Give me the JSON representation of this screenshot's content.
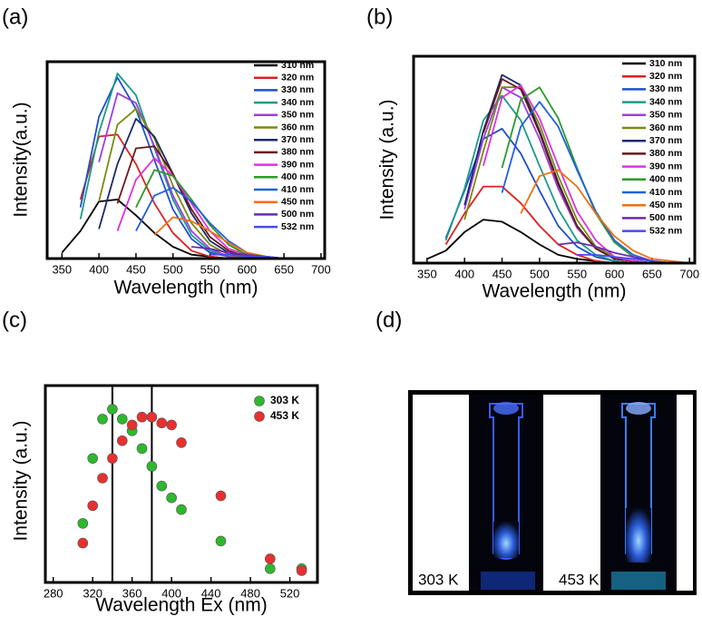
{
  "panel_labels": [
    "(a)",
    "(b)",
    "(c)",
    "(d)"
  ],
  "chart_data": [
    {
      "type": "line",
      "xlabel": "Wavelength (nm)",
      "ylabel": "Intensity(a.u.)",
      "xlim": [
        330,
        705
      ],
      "xticks": [
        350,
        400,
        450,
        500,
        550,
        600,
        650,
        700
      ],
      "ylim": [
        0,
        100
      ],
      "legend": "upper right",
      "x": [
        350,
        375,
        400,
        425,
        450,
        475,
        500,
        525,
        550,
        575,
        600,
        625,
        650,
        675,
        700
      ],
      "series": [
        {
          "name": "310 nm",
          "color": "#000000",
          "values": [
            3,
            14,
            29,
            30,
            22,
            13,
            6,
            2,
            1,
            0,
            0,
            0,
            0,
            0,
            0
          ]
        },
        {
          "name": "320 nm",
          "color": "#e02020",
          "values": [
            null,
            30,
            62,
            63,
            48,
            28,
            13,
            4,
            1,
            0,
            0,
            0,
            0,
            0,
            0
          ]
        },
        {
          "name": "330 nm",
          "color": "#1e50c8",
          "values": [
            null,
            26,
            72,
            92,
            76,
            50,
            25,
            10,
            3,
            1,
            0,
            0,
            0,
            0,
            0
          ]
        },
        {
          "name": "340 nm",
          "color": "#1a9a8a",
          "values": [
            null,
            20,
            64,
            94,
            83,
            56,
            30,
            12,
            4,
            1,
            0,
            0,
            0,
            0,
            0
          ]
        },
        {
          "name": "350 nm",
          "color": "#9b3fe0",
          "values": [
            null,
            null,
            49,
            84,
            79,
            57,
            32,
            14,
            5,
            1,
            0,
            0,
            0,
            0,
            0
          ]
        },
        {
          "name": "360 nm",
          "color": "#7a8a10",
          "values": [
            null,
            null,
            29,
            68,
            76,
            61,
            37,
            18,
            7,
            2,
            0,
            0,
            0,
            0,
            0
          ]
        },
        {
          "name": "370 nm",
          "color": "#1a2a6a",
          "values": [
            null,
            null,
            15,
            48,
            71,
            62,
            43,
            23,
            9,
            3,
            1,
            0,
            0,
            0,
            0
          ]
        },
        {
          "name": "380 nm",
          "color": "#6a1a1a",
          "values": [
            null,
            null,
            null,
            28,
            56,
            57,
            43,
            25,
            11,
            4,
            1,
            0,
            0,
            0,
            0
          ]
        },
        {
          "name": "390 nm",
          "color": "#e030e0",
          "values": [
            null,
            null,
            null,
            14,
            40,
            51,
            42,
            28,
            14,
            5,
            2,
            0,
            0,
            0,
            0
          ]
        },
        {
          "name": "400 nm",
          "color": "#2a9a2a",
          "values": [
            null,
            null,
            null,
            null,
            26,
            45,
            42,
            30,
            17,
            7,
            2,
            1,
            0,
            0,
            0
          ]
        },
        {
          "name": "410 nm",
          "color": "#2060e0",
          "values": [
            null,
            null,
            null,
            null,
            14,
            32,
            36,
            29,
            18,
            9,
            3,
            1,
            0,
            0,
            0
          ]
        },
        {
          "name": "450 nm",
          "color": "#f07010",
          "values": [
            null,
            null,
            null,
            null,
            null,
            12,
            21,
            19,
            14,
            8,
            3,
            1,
            0,
            0,
            0
          ]
        },
        {
          "name": "500 nm",
          "color": "#6a2ab0",
          "values": [
            null,
            null,
            null,
            null,
            null,
            null,
            null,
            6,
            5,
            3,
            2,
            1,
            0,
            0,
            0
          ]
        },
        {
          "name": "532 nm",
          "color": "#4a4af0",
          "values": [
            null,
            null,
            null,
            null,
            null,
            null,
            null,
            null,
            2,
            2,
            1,
            1,
            0,
            0,
            0
          ]
        }
      ]
    },
    {
      "type": "line",
      "xlabel": "Wavelength (nm)",
      "ylabel": "Intensity (a.u.)",
      "xlim": [
        332,
        707
      ],
      "xticks": [
        350,
        400,
        450,
        500,
        550,
        600,
        650,
        700
      ],
      "ylim": [
        0,
        100
      ],
      "legend": "upper right",
      "x": [
        350,
        375,
        400,
        425,
        450,
        475,
        500,
        525,
        550,
        575,
        600,
        625,
        650,
        675,
        700
      ],
      "series": [
        {
          "name": "310 nm",
          "color": "#000000",
          "values": [
            2,
            6,
            15,
            21,
            20,
            15,
            9,
            4,
            2,
            1,
            0,
            0,
            0,
            0,
            0
          ]
        },
        {
          "name": "320 nm",
          "color": "#e02020",
          "values": [
            null,
            9,
            24,
            37,
            37,
            29,
            18,
            9,
            4,
            1,
            0,
            0,
            0,
            0,
            0
          ]
        },
        {
          "name": "330 nm",
          "color": "#1e50c8",
          "values": [
            null,
            12,
            35,
            60,
            65,
            53,
            35,
            18,
            8,
            3,
            1,
            0,
            0,
            0,
            0
          ]
        },
        {
          "name": "340 nm",
          "color": "#1a9a8a",
          "values": [
            null,
            11,
            36,
            69,
            81,
            69,
            47,
            26,
            11,
            4,
            1,
            0,
            0,
            0,
            0
          ]
        },
        {
          "name": "350 nm",
          "color": "#9b3fe0",
          "values": [
            null,
            null,
            26,
            60,
            85,
            80,
            60,
            36,
            17,
            7,
            2,
            1,
            0,
            0,
            0
          ]
        },
        {
          "name": "360 nm",
          "color": "#7a8a10",
          "values": [
            null,
            null,
            21,
            54,
            85,
            85,
            67,
            42,
            21,
            8,
            3,
            1,
            0,
            0,
            0
          ]
        },
        {
          "name": "370 nm",
          "color": "#1a2a6a",
          "values": [
            null,
            null,
            28,
            64,
            91,
            86,
            64,
            39,
            18,
            7,
            2,
            1,
            0,
            0,
            0
          ]
        },
        {
          "name": "380 nm",
          "color": "#6a1a1a",
          "values": [
            null,
            null,
            null,
            63,
            89,
            84,
            63,
            38,
            18,
            7,
            2,
            1,
            0,
            0,
            0
          ]
        },
        {
          "name": "390 nm",
          "color": "#e030e0",
          "values": [
            null,
            null,
            null,
            47,
            80,
            86,
            70,
            47,
            25,
            11,
            3,
            1,
            0,
            0,
            0
          ]
        },
        {
          "name": "400 nm",
          "color": "#2a9a2a",
          "values": [
            null,
            null,
            null,
            null,
            46,
            79,
            85,
            70,
            46,
            24,
            10,
            3,
            1,
            0,
            0
          ]
        },
        {
          "name": "410 nm",
          "color": "#2060e0",
          "values": [
            null,
            null,
            null,
            null,
            34,
            66,
            78,
            66,
            45,
            25,
            11,
            4,
            1,
            0,
            0
          ]
        },
        {
          "name": "450 nm",
          "color": "#f07010",
          "values": [
            null,
            null,
            null,
            null,
            null,
            24,
            42,
            45,
            37,
            24,
            13,
            6,
            2,
            1,
            0
          ]
        },
        {
          "name": "500 nm",
          "color": "#6a2ab0",
          "values": [
            null,
            null,
            null,
            null,
            null,
            null,
            null,
            9,
            10,
            8,
            5,
            3,
            1,
            0,
            0
          ]
        },
        {
          "name": "532 nm",
          "color": "#4a4af0",
          "values": [
            null,
            null,
            null,
            null,
            null,
            null,
            null,
            null,
            4,
            4,
            3,
            2,
            1,
            0,
            0
          ]
        }
      ]
    },
    {
      "type": "scatter",
      "xlabel": "Wavelength Ex (nm)",
      "ylabel": "Intensity (a.u.)",
      "xlim": [
        272,
        548
      ],
      "xticks": [
        280,
        320,
        360,
        400,
        440,
        480,
        520
      ],
      "ylim": [
        0,
        100
      ],
      "legend": "upper right",
      "vlines": [
        340,
        380
      ],
      "series": [
        {
          "name": "303 K",
          "color": "#2db82d",
          "x": [
            310,
            320,
            330,
            340,
            350,
            360,
            370,
            380,
            390,
            400,
            410,
            450,
            500,
            532
          ],
          "values": [
            30,
            63,
            83,
            88,
            83,
            77,
            68,
            59,
            49,
            43,
            37,
            21,
            7,
            7
          ]
        },
        {
          "name": "453 K",
          "color": "#e83030",
          "x": [
            310,
            320,
            330,
            340,
            350,
            360,
            370,
            380,
            390,
            400,
            410,
            450,
            500,
            532
          ],
          "values": [
            20,
            39,
            53,
            63,
            72,
            80,
            84,
            84,
            81,
            80,
            71,
            44,
            12,
            6
          ]
        }
      ]
    }
  ],
  "photo": {
    "labels": [
      "303 K",
      "453 K"
    ]
  }
}
